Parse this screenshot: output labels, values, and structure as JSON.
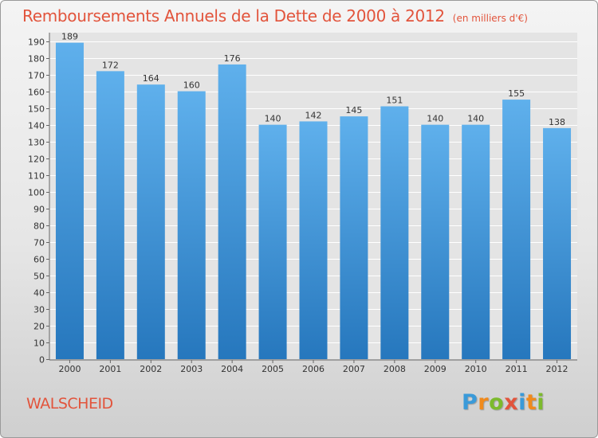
{
  "chart_data": {
    "type": "bar",
    "title": "Remboursements Annuels de la Dette de 2000 à 2012",
    "subtitle": "(en milliers d'€)",
    "categories": [
      "2000",
      "2001",
      "2002",
      "2003",
      "2004",
      "2005",
      "2006",
      "2007",
      "2008",
      "2009",
      "2010",
      "2011",
      "2012"
    ],
    "values": [
      189,
      172,
      164,
      160,
      176,
      140,
      142,
      145,
      151,
      140,
      140,
      155,
      138
    ],
    "xlabel": "",
    "ylabel": "",
    "ylim": [
      0,
      195
    ],
    "yticks": [
      0,
      10,
      20,
      30,
      40,
      50,
      60,
      70,
      80,
      90,
      100,
      110,
      120,
      130,
      140,
      150,
      160,
      170,
      180,
      190
    ],
    "grid": true,
    "bar_color": "#3f8fd2"
  },
  "footer": {
    "commune": "WALSCHEID"
  },
  "logo": {
    "text": "Proxiti",
    "letters": [
      {
        "ch": "P",
        "color": "#3a9ad9"
      },
      {
        "ch": "r",
        "color": "#f08a1c"
      },
      {
        "ch": "o",
        "color": "#7cba2d"
      },
      {
        "ch": "x",
        "color": "#e2543c"
      },
      {
        "ch": "i",
        "color": "#3a9ad9"
      },
      {
        "ch": "t",
        "color": "#f08a1c"
      },
      {
        "ch": "i",
        "color": "#7cba2d"
      }
    ]
  }
}
